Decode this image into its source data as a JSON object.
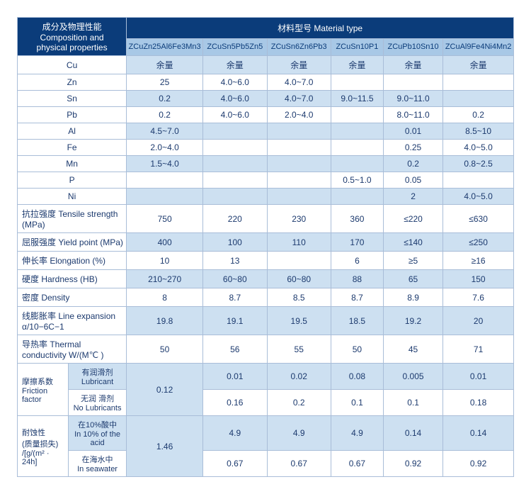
{
  "header": {
    "left_title_cn": "成分及物理性能",
    "left_title_en1": "Composition and",
    "left_title_en2": "physical properties",
    "right_title": "材料型号 Material type"
  },
  "materials": [
    "ZCuZn25Al6Fe3Mn3",
    "ZCuSn5Pb5Zn5",
    "ZCuSn6Zn6Pb3",
    "ZCuSn10P1",
    "ZCuPb10Sn10",
    "ZCuAl9Fe4Ni4Mn2"
  ],
  "rows": [
    {
      "label": "Cu",
      "alt": true,
      "v": [
        "余量",
        "余量",
        "余量",
        "余量",
        "余量",
        "余量"
      ]
    },
    {
      "label": "Zn",
      "v": [
        "25",
        "4.0~6.0",
        "4.0~7.0",
        "",
        "",
        ""
      ]
    },
    {
      "label": "Sn",
      "alt": true,
      "v": [
        "0.2",
        "4.0~6.0",
        "4.0~7.0",
        "9.0~11.5",
        "9.0~11.0",
        ""
      ]
    },
    {
      "label": "Pb",
      "v": [
        "0.2",
        "4.0~6.0",
        "2.0~4.0",
        "",
        "8.0~11.0",
        "0.2"
      ]
    },
    {
      "label": "Al",
      "alt": true,
      "v": [
        "4.5~7.0",
        "",
        "",
        "",
        "0.01",
        "8.5~10"
      ]
    },
    {
      "label": "Fe",
      "v": [
        "2.0~4.0",
        "",
        "",
        "",
        "0.25",
        "4.0~5.0"
      ]
    },
    {
      "label": "Mn",
      "alt": true,
      "v": [
        "1.5~4.0",
        "",
        "",
        "",
        "0.2",
        "0.8~2.5"
      ]
    },
    {
      "label": "P",
      "v": [
        "",
        "",
        "",
        "0.5~1.0",
        "0.05",
        ""
      ]
    },
    {
      "label": "Ni",
      "alt": true,
      "v": [
        "",
        "",
        "",
        "",
        "2",
        "4.0~5.0"
      ]
    }
  ],
  "prop_rows": [
    {
      "label": "抗拉强度 Tensile strength (MPa)",
      "v": [
        "750",
        "220",
        "230",
        "360",
        "≤220",
        "≤630"
      ]
    },
    {
      "label": "屈服强度 Yield point (MPa)",
      "alt": true,
      "v": [
        "400",
        "100",
        "110",
        "170",
        "≤140",
        "≤250"
      ]
    },
    {
      "label": "伸长率 Elongation (%)",
      "v": [
        "10",
        "13",
        "",
        "6",
        "≥5",
        "≥16"
      ]
    },
    {
      "label": "硬度 Hardness (HB)",
      "alt": true,
      "v": [
        "210~270",
        "60~80",
        "60~80",
        "88",
        "65",
        "150"
      ]
    },
    {
      "label": "密度 Density",
      "v": [
        "8",
        "8.7",
        "8.5",
        "8.7",
        "8.9",
        "7.6"
      ]
    },
    {
      "label": "线膨胀率 Line expansion α/10−6C−1",
      "alt": true,
      "v": [
        "19.8",
        "19.1",
        "19.5",
        "18.5",
        "19.2",
        "20"
      ]
    },
    {
      "label": "导热率 Thermal conductivity W/(M℃ )",
      "v": [
        "50",
        "56",
        "55",
        "50",
        "45",
        "71"
      ]
    }
  ],
  "friction": {
    "group_label_cn": "摩擦系数",
    "group_label_en": "Friction factor",
    "sub1_cn": "有润滑剂",
    "sub1_en": "Lubricant",
    "sub2_cn": "无润 滑剂",
    "sub2_en": "No Lubricants",
    "merged": "0.12",
    "r1": [
      "0.01",
      "0.02",
      "0.08",
      "0.005",
      "0.01"
    ],
    "r2": [
      "0.16",
      "0.2",
      "0.1",
      "0.1",
      "0.18"
    ]
  },
  "corrosion": {
    "group_label_cn": "耐蚀性",
    "group_label_mid": "(质量损失)",
    "group_label_en": "/[g/(m² · 24h]",
    "sub1_cn": "在10%酸中",
    "sub1_en": "In 10% of the acid",
    "sub2_cn": "在海水中",
    "sub2_en": "In seawater",
    "merged": "1.46",
    "r1": [
      "4.9",
      "4.9",
      "4.9",
      "0.14",
      "0.14"
    ],
    "r2": [
      "0.67",
      "0.67",
      "0.67",
      "0.92",
      "0.92"
    ]
  }
}
